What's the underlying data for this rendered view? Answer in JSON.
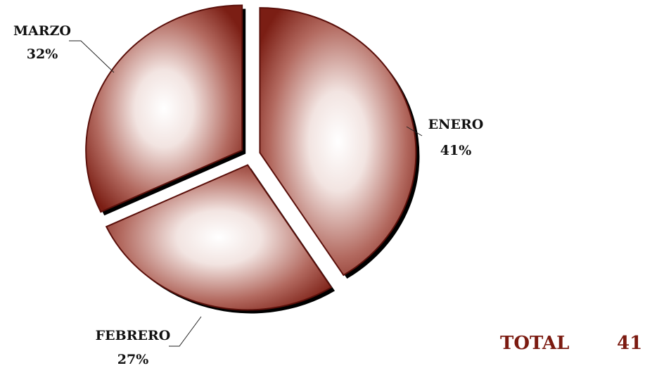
{
  "chart_data": {
    "type": "pie",
    "style": "exploded-3d",
    "slices": [
      {
        "category": "ENERO",
        "label": "ENERO",
        "percent_label": "41%",
        "value": 41
      },
      {
        "category": "FEBRERO",
        "label": "FEBRERO",
        "percent_label": "27%",
        "value": 27
      },
      {
        "category": "MARZO",
        "label": "MARZO",
        "percent_label": "32%",
        "value": 32
      }
    ],
    "legend": "none",
    "colors": {
      "slice_fill_dark": "#7b1e14",
      "slice_fill_light": "#ffffff",
      "slice_outline": "#5a0f0a",
      "shadow": "#000000",
      "total_color": "#7b1a10",
      "label_color": "#111111"
    }
  },
  "total": {
    "label": "TOTAL",
    "value": "41"
  }
}
